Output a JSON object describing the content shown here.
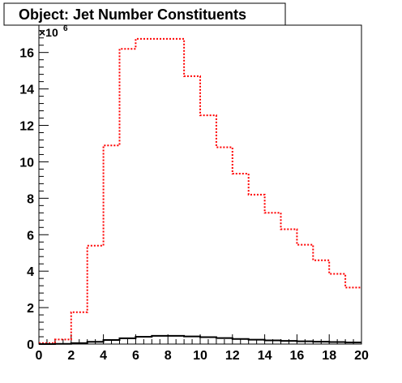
{
  "chart_data": {
    "type": "histogram",
    "title": "Object: Jet Number Constituents",
    "xlabel": "",
    "ylabel": "",
    "y_multiplier_label": "×10",
    "y_multiplier_exponent": "6",
    "xlim": [
      0,
      20
    ],
    "ylim": [
      0,
      17.5
    ],
    "grid": false,
    "legend": "none",
    "x_ticks": [
      "0",
      "2",
      "4",
      "6",
      "8",
      "10",
      "12",
      "14",
      "16",
      "18",
      "20"
    ],
    "y_ticks": [
      "0",
      "2",
      "4",
      "6",
      "8",
      "10",
      "12",
      "14",
      "16"
    ],
    "bin_edges": [
      0,
      1,
      2,
      3,
      4,
      5,
      6,
      7,
      8,
      9,
      10,
      11,
      12,
      13,
      14,
      15,
      16,
      17,
      18,
      19,
      20
    ],
    "series": [
      {
        "color": "#ff0000",
        "line_style": "dotted",
        "values": [
          0.05,
          0.25,
          1.75,
          5.4,
          10.9,
          16.2,
          16.75,
          16.75,
          16.75,
          14.7,
          12.55,
          10.8,
          9.35,
          8.2,
          7.2,
          6.3,
          5.45,
          4.6,
          3.85,
          3.1
        ]
      },
      {
        "color": "#000000",
        "line_style": "solid",
        "values": [
          0.0,
          0.01,
          0.05,
          0.12,
          0.22,
          0.32,
          0.4,
          0.45,
          0.45,
          0.42,
          0.38,
          0.33,
          0.28,
          0.24,
          0.2,
          0.17,
          0.15,
          0.13,
          0.11,
          0.09
        ]
      }
    ]
  }
}
